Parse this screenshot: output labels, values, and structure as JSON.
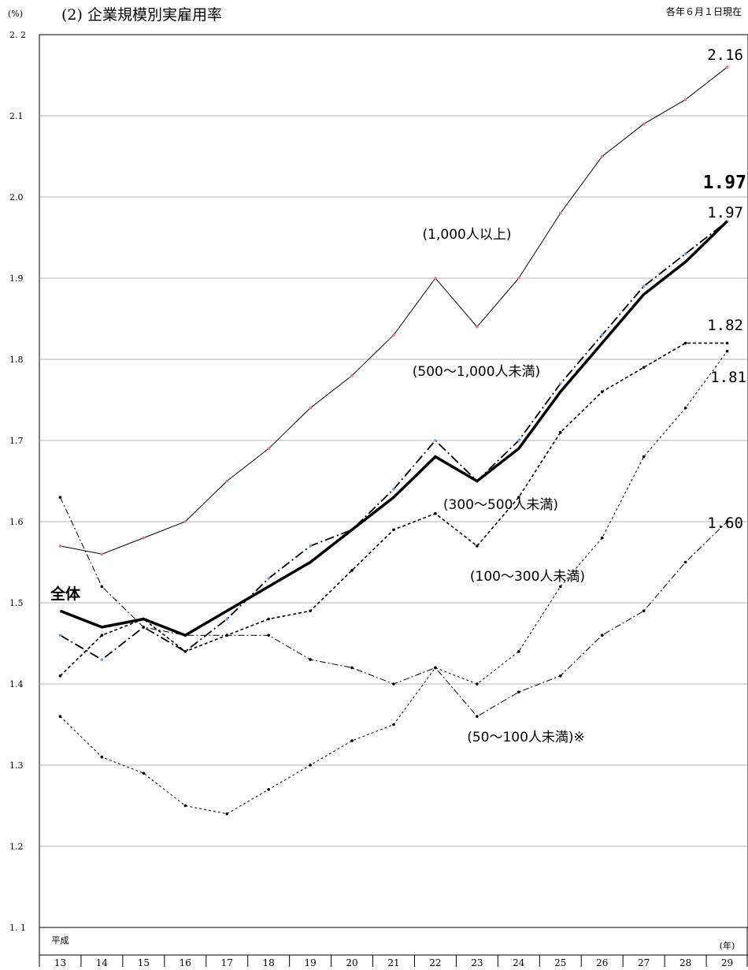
{
  "title": "(2)  企業規模別実雇用率",
  "unit": "(%)",
  "note": "各年６月１日現在",
  "chart_data": {
    "type": "line",
    "ylim": [
      1.1,
      2.2
    ],
    "y_ticks": [
      "1. 1",
      "1.2",
      "1.3",
      "1.4",
      "1.5",
      "1.6",
      "1.7",
      "1.8",
      "1.9",
      "2.0",
      "2.1",
      "2. 2"
    ],
    "y_tick_values": [
      1.1,
      1.2,
      1.3,
      1.4,
      1.5,
      1.6,
      1.7,
      1.8,
      1.9,
      2.0,
      2.1,
      2.2
    ],
    "categories": [
      "13",
      "14",
      "15",
      "16",
      "17",
      "18",
      "19",
      "20",
      "21",
      "22",
      "23",
      "24",
      "25",
      "26",
      "27",
      "28",
      "29"
    ],
    "x_era_label": "平成",
    "x_unit": "(年)",
    "grid": true,
    "series": [
      {
        "name": "(1,000人以上)",
        "style": "thin-solid",
        "marker_color": "#e8748a",
        "values": [
          1.57,
          1.56,
          1.58,
          1.6,
          1.65,
          1.69,
          1.74,
          1.78,
          1.83,
          1.9,
          1.84,
          1.9,
          1.98,
          2.05,
          2.09,
          2.12,
          2.16
        ],
        "end_label": "2.16"
      },
      {
        "name": "(500～1,000人未満)",
        "style": "dash-dot",
        "marker_color": "#6fa0e0",
        "values": [
          1.46,
          1.43,
          1.47,
          1.44,
          1.48,
          1.53,
          1.57,
          1.59,
          1.64,
          1.7,
          1.65,
          1.7,
          1.77,
          1.83,
          1.89,
          1.93,
          1.97
        ],
        "end_label": "1.97"
      },
      {
        "name": "全体",
        "style": "thick-solid",
        "marker_color": "#000000",
        "values": [
          1.49,
          1.47,
          1.48,
          1.46,
          1.49,
          1.52,
          1.55,
          1.59,
          1.63,
          1.68,
          1.65,
          1.69,
          1.76,
          1.82,
          1.88,
          1.92,
          1.97
        ],
        "end_label": "1.97"
      },
      {
        "name": "(300～500人未満)",
        "style": "dashed",
        "marker_color": "#000000",
        "values": [
          1.41,
          1.46,
          1.48,
          1.44,
          1.46,
          1.48,
          1.49,
          1.54,
          1.59,
          1.61,
          1.57,
          1.63,
          1.71,
          1.76,
          1.79,
          1.82,
          1.82
        ],
        "end_label": "1.82"
      },
      {
        "name": "(100～300人未満)",
        "style": "fine-dashed",
        "marker_color": "#000000",
        "values": [
          1.36,
          1.31,
          1.29,
          1.25,
          1.24,
          1.27,
          1.3,
          1.33,
          1.35,
          1.42,
          1.4,
          1.44,
          1.52,
          1.58,
          1.68,
          1.74,
          1.81
        ],
        "end_label": "1.81"
      },
      {
        "name": "(50～100人未満)※",
        "style": "dash-dot-thin",
        "marker_color": "#000000",
        "values": [
          1.63,
          1.52,
          1.47,
          1.46,
          1.46,
          1.46,
          1.43,
          1.42,
          1.4,
          1.42,
          1.36,
          1.39,
          1.41,
          1.46,
          1.49,
          1.55,
          1.6
        ],
        "end_label": "1.60"
      }
    ]
  }
}
